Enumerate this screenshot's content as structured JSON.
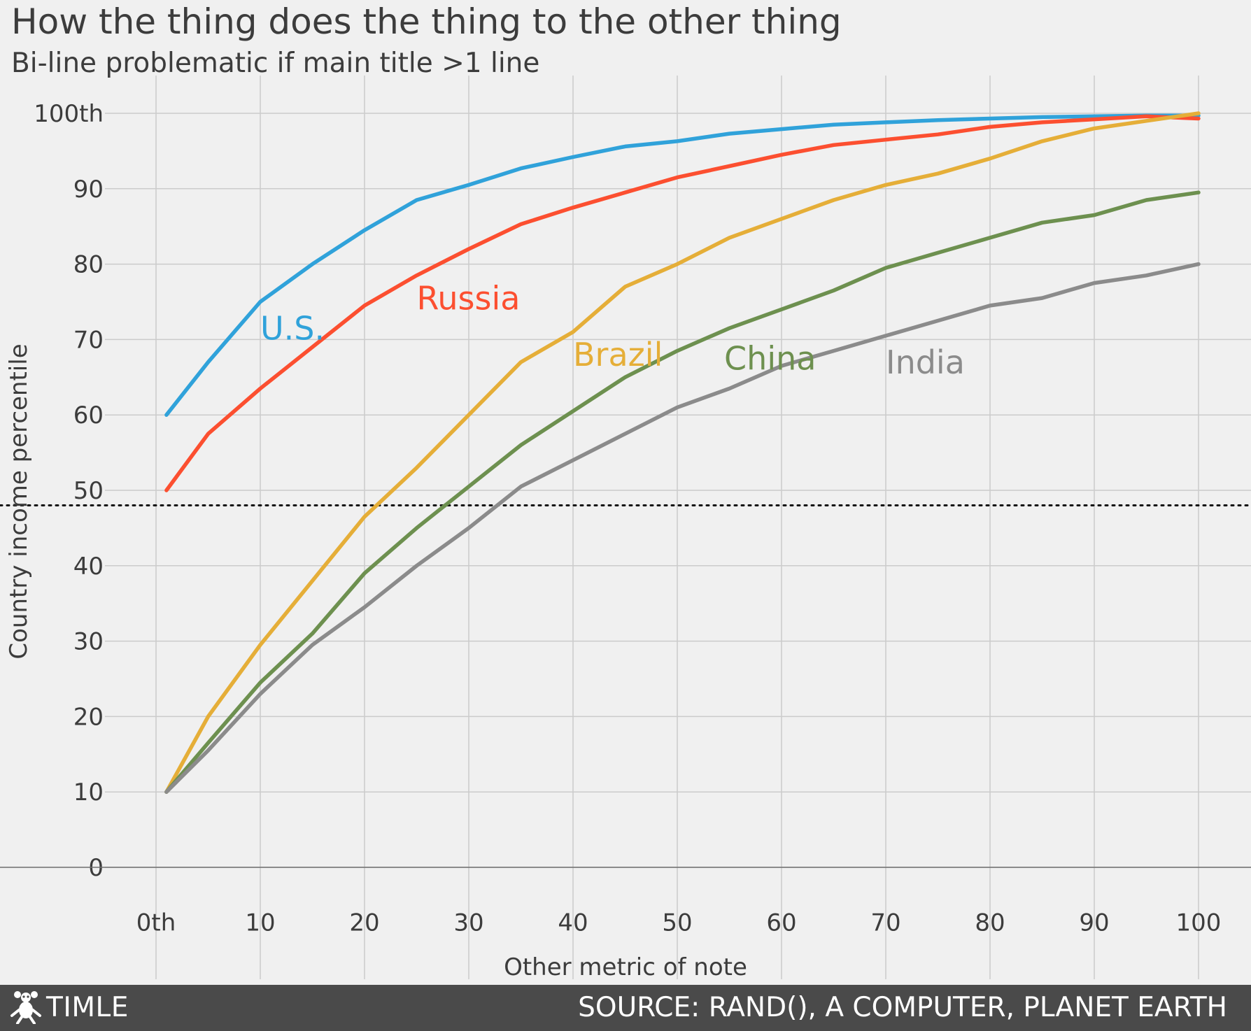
{
  "title": "How the thing does the thing to the other thing",
  "subtitle": "Bi-line problematic if main title >1 line",
  "footer": {
    "brand": "TIMLE",
    "source": "SOURCE: RAND(), A COMPUTER, PLANET EARTH",
    "logo_icon": "animal-mascot-icon"
  },
  "chart_data": {
    "type": "line",
    "xlabel": "Other metric of note",
    "ylabel": "Country income percentile",
    "xlim": [
      -5,
      105
    ],
    "ylim": [
      -5,
      105
    ],
    "x_ticks": [
      {
        "value": 0,
        "label": "0th"
      },
      {
        "value": 10,
        "label": "10"
      },
      {
        "value": 20,
        "label": "20"
      },
      {
        "value": 30,
        "label": "30"
      },
      {
        "value": 40,
        "label": "40"
      },
      {
        "value": 50,
        "label": "50"
      },
      {
        "value": 60,
        "label": "60"
      },
      {
        "value": 70,
        "label": "70"
      },
      {
        "value": 80,
        "label": "80"
      },
      {
        "value": 90,
        "label": "90"
      },
      {
        "value": 100,
        "label": "100"
      }
    ],
    "y_ticks": [
      {
        "value": 0,
        "label": "0"
      },
      {
        "value": 10,
        "label": "10"
      },
      {
        "value": 20,
        "label": "20"
      },
      {
        "value": 30,
        "label": "30"
      },
      {
        "value": 40,
        "label": "40"
      },
      {
        "value": 50,
        "label": "50"
      },
      {
        "value": 60,
        "label": "60"
      },
      {
        "value": 70,
        "label": "70"
      },
      {
        "value": 80,
        "label": "80"
      },
      {
        "value": 90,
        "label": "90"
      },
      {
        "value": 100,
        "label": "100th"
      }
    ],
    "grid": true,
    "reference_line": {
      "y": 48,
      "style": "dotted"
    },
    "x": [
      1,
      5,
      10,
      15,
      20,
      25,
      30,
      35,
      40,
      45,
      50,
      55,
      60,
      65,
      70,
      75,
      80,
      85,
      90,
      95,
      100
    ],
    "series": [
      {
        "name": "U.S.",
        "color": "#30a2da",
        "label_at": [
          10,
          70
        ],
        "values": [
          60,
          67,
          75,
          80,
          84.5,
          88.5,
          90.5,
          92.7,
          94.2,
          95.6,
          96.3,
          97.3,
          97.9,
          98.5,
          98.8,
          99.1,
          99.3,
          99.5,
          99.6,
          99.7,
          99.7
        ]
      },
      {
        "name": "Russia",
        "color": "#fc4f30",
        "label_at": [
          25,
          74
        ],
        "values": [
          50,
          57.5,
          63.5,
          69,
          74.5,
          78.5,
          82,
          85.3,
          87.5,
          89.5,
          91.5,
          93,
          94.5,
          95.8,
          96.5,
          97.2,
          98.2,
          98.8,
          99.2,
          99.6,
          99.3
        ]
      },
      {
        "name": "Brazil",
        "color": "#e5ae38",
        "label_at": [
          40,
          66.5
        ],
        "values": [
          10,
          20,
          29.5,
          38,
          46.5,
          53,
          60,
          67,
          71,
          77,
          80,
          83.5,
          86,
          88.5,
          90.5,
          92,
          94,
          96.3,
          98,
          99,
          100
        ]
      },
      {
        "name": "China",
        "color": "#6d904f",
        "label_at": [
          54.5,
          66
        ],
        "values": [
          10,
          16.5,
          24.5,
          31,
          39,
          45,
          50.5,
          56,
          60.5,
          65,
          68.5,
          71.5,
          74,
          76.5,
          79.5,
          81.5,
          83.5,
          85.5,
          86.5,
          88.5,
          89.5
        ]
      },
      {
        "name": "India",
        "color": "#8b8b8b",
        "label_at": [
          70,
          65.5
        ],
        "values": [
          10,
          15.5,
          23,
          29.5,
          34.5,
          40,
          45,
          50.5,
          54,
          57.5,
          61,
          63.5,
          66.5,
          68.5,
          70.5,
          72.5,
          74.5,
          75.5,
          77.5,
          78.5,
          80
        ]
      }
    ]
  }
}
